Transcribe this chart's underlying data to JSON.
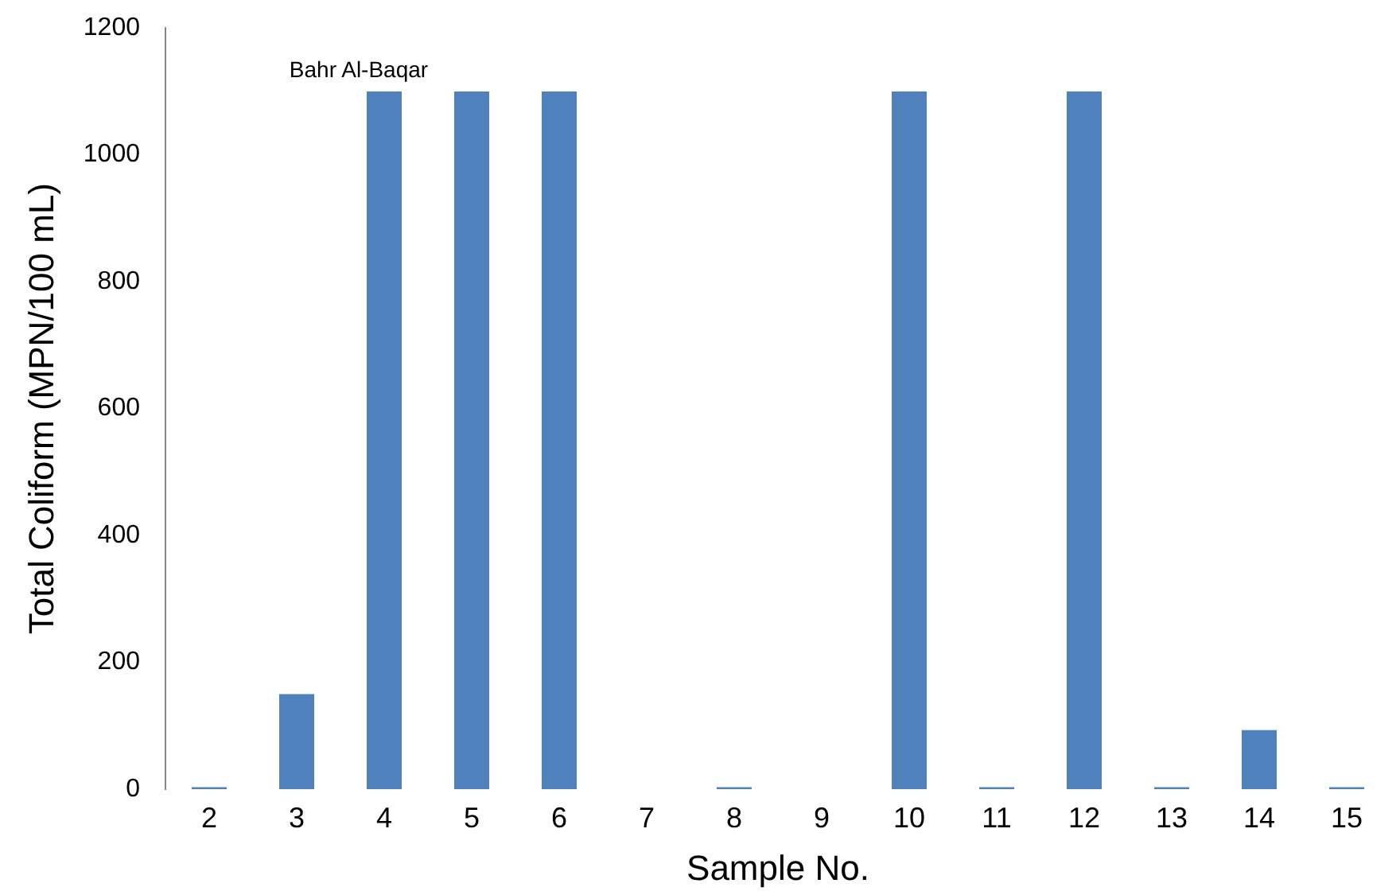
{
  "chart_data": {
    "type": "bar",
    "xlabel": "Sample No.",
    "ylabel": "Total Coliform (MPN/100 mL)",
    "categories": [
      "2",
      "3",
      "4",
      "5",
      "6",
      "7",
      "8",
      "9",
      "10",
      "11",
      "12",
      "13",
      "14",
      "15"
    ],
    "values": [
      3,
      150,
      1100,
      1100,
      1100,
      0,
      3,
      0,
      1100,
      3,
      1100,
      3,
      93,
      3
    ],
    "color": "#4f81bd",
    "ylim": [
      0,
      1200
    ],
    "yticks": [
      0,
      200,
      400,
      600,
      800,
      1000,
      1200
    ],
    "grid": false,
    "legend": false,
    "annotations": [
      {
        "text": "Bahr Al-Baqar",
        "x": "4",
        "y": 1100
      }
    ]
  }
}
